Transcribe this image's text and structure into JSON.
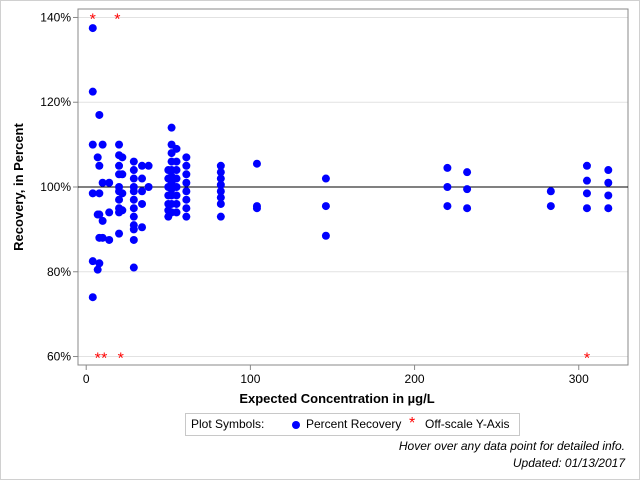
{
  "chart_data": {
    "type": "scatter",
    "title": "",
    "xlabel": "Expected Concentration in µg/L",
    "ylabel": "Recovery, in Percent",
    "xlim": [
      -5,
      330
    ],
    "ylim": [
      58,
      142
    ],
    "x_ticks": [
      0,
      100,
      200,
      300
    ],
    "x_tick_labels": [
      "0",
      "100",
      "200",
      "300"
    ],
    "y_ticks": [
      60,
      80,
      100,
      120,
      140
    ],
    "y_tick_labels": [
      "60%",
      "80%",
      "100%",
      "120%",
      "140%"
    ],
    "grid": "horizontal",
    "reference_line": 100,
    "series": [
      {
        "name": "Percent Recovery",
        "color": "#0000ff",
        "marker": "circle",
        "points": [
          [
            4,
            137.5
          ],
          [
            4,
            122.5
          ],
          [
            4,
            110
          ],
          [
            4,
            98.5
          ],
          [
            4,
            82.5
          ],
          [
            4,
            74
          ],
          [
            7,
            107
          ],
          [
            7,
            93.5
          ],
          [
            7,
            80.5
          ],
          [
            8,
            117
          ],
          [
            8,
            105
          ],
          [
            8,
            98.5
          ],
          [
            8,
            93.5
          ],
          [
            8,
            88
          ],
          [
            8,
            82
          ],
          [
            10,
            110
          ],
          [
            10,
            101
          ],
          [
            10,
            92
          ],
          [
            10,
            88
          ],
          [
            14,
            101
          ],
          [
            14,
            94
          ],
          [
            14,
            87.5
          ],
          [
            20,
            110
          ],
          [
            20,
            107.5
          ],
          [
            20,
            105
          ],
          [
            20,
            103
          ],
          [
            20,
            100
          ],
          [
            20,
            99
          ],
          [
            20,
            97
          ],
          [
            20,
            95
          ],
          [
            20,
            94
          ],
          [
            20,
            89
          ],
          [
            22,
            107
          ],
          [
            22,
            103
          ],
          [
            22,
            98.5
          ],
          [
            22,
            94.5
          ],
          [
            29,
            106
          ],
          [
            29,
            104
          ],
          [
            29,
            102
          ],
          [
            29,
            100
          ],
          [
            29,
            99
          ],
          [
            29,
            97
          ],
          [
            29,
            95
          ],
          [
            29,
            93
          ],
          [
            29,
            91
          ],
          [
            29,
            90
          ],
          [
            29,
            87.5
          ],
          [
            29,
            81
          ],
          [
            34,
            105
          ],
          [
            34,
            102
          ],
          [
            34,
            99
          ],
          [
            34,
            96
          ],
          [
            34,
            90.5
          ],
          [
            38,
            105
          ],
          [
            38,
            100
          ],
          [
            50,
            104
          ],
          [
            50,
            102
          ],
          [
            50,
            100
          ],
          [
            50,
            98
          ],
          [
            50,
            96
          ],
          [
            50,
            94.5
          ],
          [
            50,
            93
          ],
          [
            52,
            114
          ],
          [
            52,
            110
          ],
          [
            52,
            108
          ],
          [
            52,
            106
          ],
          [
            52,
            104
          ],
          [
            52,
            102.5
          ],
          [
            52,
            101
          ],
          [
            52,
            99.5
          ],
          [
            52,
            98
          ],
          [
            52,
            96
          ],
          [
            52,
            94
          ],
          [
            55,
            109
          ],
          [
            55,
            106
          ],
          [
            55,
            104
          ],
          [
            55,
            102
          ],
          [
            55,
            100
          ],
          [
            55,
            98
          ],
          [
            55,
            96
          ],
          [
            55,
            94
          ],
          [
            61,
            107
          ],
          [
            61,
            105
          ],
          [
            61,
            103
          ],
          [
            61,
            101
          ],
          [
            61,
            99
          ],
          [
            61,
            97
          ],
          [
            61,
            95
          ],
          [
            61,
            93
          ],
          [
            82,
            105
          ],
          [
            82,
            103.5
          ],
          [
            82,
            102
          ],
          [
            82,
            100.5
          ],
          [
            82,
            99
          ],
          [
            82,
            97.5
          ],
          [
            82,
            96
          ],
          [
            82,
            93
          ],
          [
            104,
            105.5
          ],
          [
            104,
            95.5
          ],
          [
            104,
            95
          ],
          [
            146,
            102
          ],
          [
            146,
            95.5
          ],
          [
            146,
            88.5
          ],
          [
            220,
            104.5
          ],
          [
            220,
            100
          ],
          [
            220,
            95.5
          ],
          [
            232,
            103.5
          ],
          [
            232,
            99.5
          ],
          [
            232,
            95
          ],
          [
            283,
            99
          ],
          [
            283,
            95.5
          ],
          [
            305,
            105
          ],
          [
            305,
            101.5
          ],
          [
            305,
            98.5
          ],
          [
            305,
            95
          ],
          [
            318,
            104
          ],
          [
            318,
            101
          ],
          [
            318,
            98
          ],
          [
            318,
            95
          ]
        ]
      },
      {
        "name": "Off-scale Y-Axis",
        "color": "#ff0000",
        "marker": "asterisk",
        "points": [
          [
            4,
            140
          ],
          [
            19,
            140
          ],
          [
            7,
            60
          ],
          [
            11,
            60
          ],
          [
            21,
            60
          ],
          [
            305,
            60
          ]
        ]
      }
    ]
  },
  "legend": {
    "label": "Plot Symbols:",
    "item1": "Percent Recovery",
    "item2": "Off-scale Y-Axis",
    "item1_color": "#0000ff",
    "item2_color": "#ff0000"
  },
  "footer": {
    "hover_note": "Hover over any data point for detailed info.",
    "updated": "Updated: 01/13/2017"
  }
}
